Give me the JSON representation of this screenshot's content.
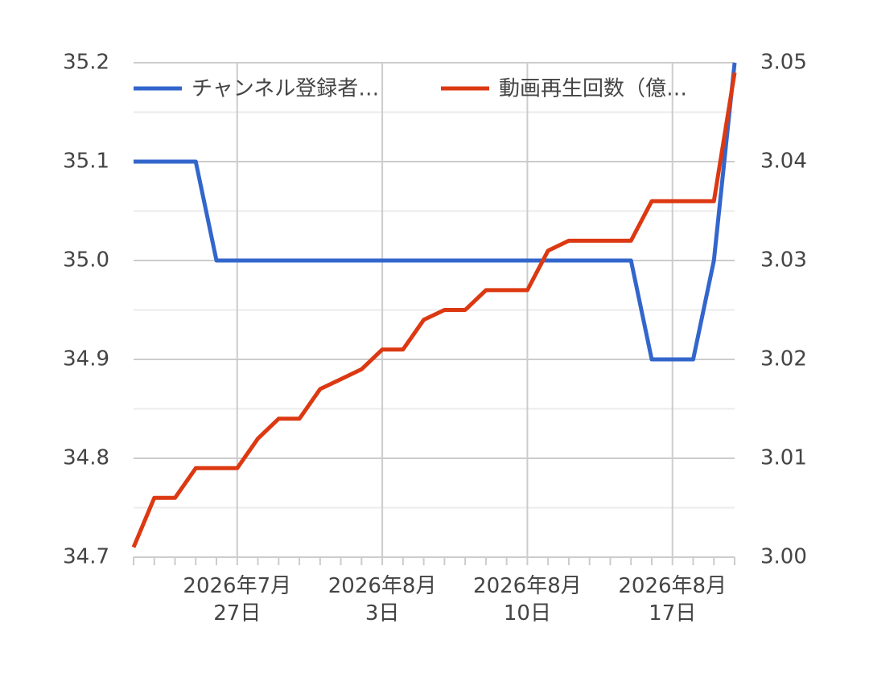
{
  "chart_data": {
    "type": "line",
    "categories": [
      null,
      null,
      null,
      null,
      null,
      "2026年7月\n27日",
      null,
      null,
      null,
      null,
      null,
      null,
      "2026年8月\n3日",
      null,
      null,
      null,
      null,
      null,
      null,
      "2026年8月\n10日",
      null,
      null,
      null,
      null,
      null,
      null,
      "2026年8月\n17日",
      null,
      null,
      null
    ],
    "series": [
      {
        "name": "チャンネル登録者…",
        "color": "#3366cc",
        "values": [
          35.1,
          35.1,
          35.1,
          35.1,
          35.0,
          35.0,
          35.0,
          35.0,
          35.0,
          35.0,
          35.0,
          35.0,
          35.0,
          35.0,
          35.0,
          35.0,
          35.0,
          35.0,
          35.0,
          35.0,
          35.0,
          35.0,
          35.0,
          35.0,
          35.0,
          34.9,
          34.9,
          34.9,
          35.0,
          35.2
        ]
      },
      {
        "name": "動画再生回数（億…",
        "color": "#dc3912",
        "axis": "y2",
        "values": [
          3.001,
          3.006,
          3.006,
          3.009,
          3.009,
          3.009,
          3.012,
          3.014,
          3.014,
          3.017,
          3.018,
          3.019,
          3.021,
          3.021,
          3.024,
          3.025,
          3.025,
          3.027,
          3.027,
          3.027,
          3.031,
          3.032,
          3.032,
          3.032,
          3.032,
          3.036,
          3.036,
          3.036,
          3.036,
          3.049
        ]
      }
    ],
    "ylim": [
      34.7,
      35.2
    ],
    "yticks": [
      {
        "value": 34.7,
        "label": "34.7"
      },
      34.8,
      34.9,
      {
        "value": 35.0,
        "label": "35.0"
      },
      35.1,
      35.2
    ],
    "y2lim": [
      3.0,
      3.05
    ],
    "y2ticks": [
      {
        "value": 3.0,
        "label": "3.00"
      },
      3.01,
      3.02,
      3.03,
      3.04,
      3.05
    ],
    "grid": true,
    "legend": "top"
  }
}
